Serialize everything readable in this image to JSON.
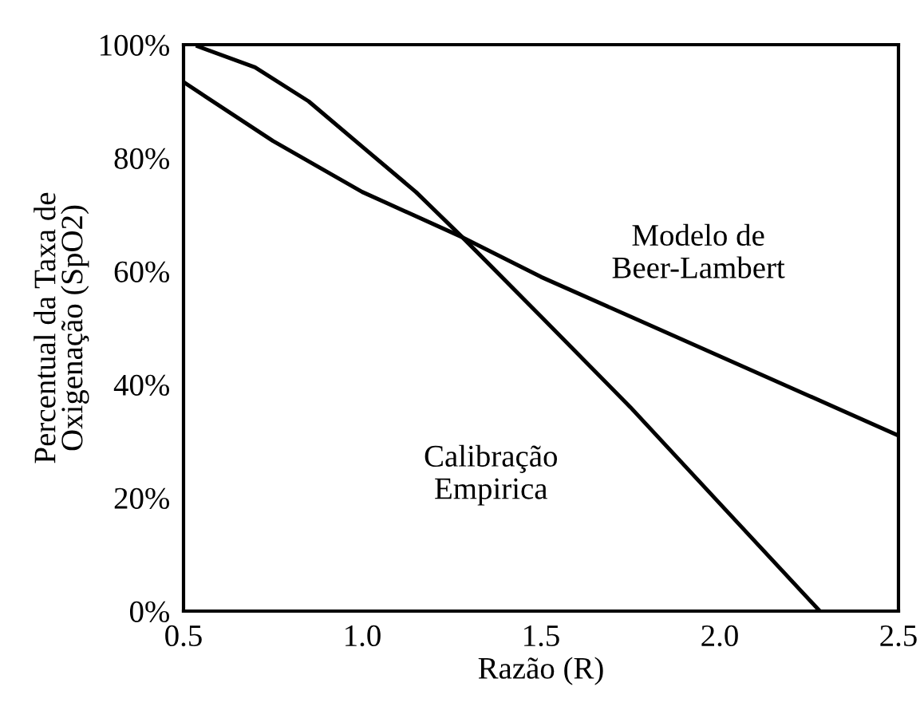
{
  "chart_data": {
    "type": "line",
    "xlabel": "Razão (R)",
    "ylabel": "Percentual da Taxa de\nOxigenação (SpO2)",
    "series": [
      {
        "name": "Modelo de\nBeer-Lambert",
        "color": "#000000",
        "x": [
          0.5,
          0.75,
          1.0,
          1.28,
          1.5,
          1.75,
          2.0,
          2.25,
          2.5
        ],
        "values": [
          93.4,
          83,
          74,
          66,
          59,
          52,
          45,
          38,
          31
        ]
      },
      {
        "name": "Calibração\nEmpirica",
        "color": "#000000",
        "x": [
          0.54,
          0.7,
          0.85,
          1.0,
          1.15,
          1.28,
          1.5,
          1.75,
          2.0,
          2.28
        ],
        "values": [
          99.7,
          96,
          90,
          82,
          74,
          66,
          52,
          36,
          19,
          0
        ]
      }
    ],
    "xlim": [
      0.5,
      2.5
    ],
    "xticks": [
      {
        "value": 0.5,
        "label": "0.5"
      },
      {
        "value": 1.0,
        "label": "1.0"
      },
      {
        "value": 1.5,
        "label": "1.5"
      },
      {
        "value": 2.0,
        "label": "2.0"
      },
      {
        "value": 2.5,
        "label": "2.5"
      }
    ],
    "ylim": [
      0,
      100
    ],
    "yticks": [
      {
        "value": 0,
        "label": "0%"
      },
      {
        "value": 20,
        "label": "20%"
      },
      {
        "value": 40,
        "label": "40%"
      },
      {
        "value": 60,
        "label": "60%"
      },
      {
        "value": 80,
        "label": "80%"
      },
      {
        "value": 100,
        "label": "100%"
      }
    ],
    "grid": false,
    "legend": false
  }
}
